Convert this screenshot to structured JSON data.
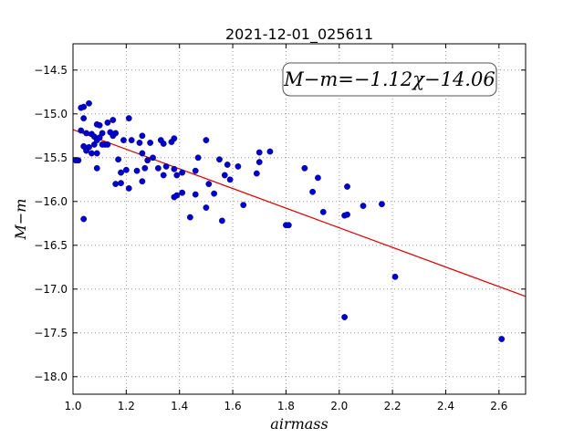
{
  "chart_data": {
    "type": "scatter",
    "title": "2021-12-01_025611",
    "xlabel": "airmass",
    "ylabel": "M−m",
    "xlim": [
      1.0,
      2.7
    ],
    "ylim": [
      -18.2,
      -14.2
    ],
    "y_inverted": true,
    "xticks": [
      "1.0",
      "1.2",
      "1.4",
      "1.6",
      "1.8",
      "2.0",
      "2.2",
      "2.4",
      "2.6"
    ],
    "xtick_values": [
      1.0,
      1.2,
      1.4,
      1.6,
      1.8,
      2.0,
      2.2,
      2.4,
      2.6
    ],
    "yticks": [
      "−14.5",
      "−15.0",
      "−15.5",
      "−16.0",
      "−16.5",
      "−17.0",
      "−17.5",
      "−18.0"
    ],
    "ytick_values": [
      -14.5,
      -15.0,
      -15.5,
      -16.0,
      -16.5,
      -17.0,
      -17.5,
      -18.0
    ],
    "grid": true,
    "annotation": "M−m=−1.12χ−14.06",
    "fit": {
      "slope": -1.12,
      "intercept": -14.06,
      "color": "#dd0000"
    },
    "point_color": "#0000cc",
    "series": [
      {
        "x": [
          1.04,
          1.03,
          1.04,
          1.06,
          1.09,
          1.1,
          1.13,
          1.15,
          1.03,
          1.05,
          1.07,
          1.08,
          1.11,
          1.14,
          1.16,
          1.02,
          1.04,
          1.05,
          1.06,
          1.08,
          1.09,
          1.1,
          1.12,
          1.13,
          1.15,
          1.17,
          1.01,
          1.05,
          1.07,
          1.09,
          1.11,
          1.19,
          1.21,
          1.22,
          1.25,
          1.26,
          1.29,
          1.33,
          1.38,
          1.26,
          1.28,
          1.3,
          1.34,
          1.37,
          1.47,
          1.5,
          1.55,
          1.62,
          1.7,
          1.74,
          1.18,
          1.2,
          1.24,
          1.27,
          1.32,
          1.35,
          1.38,
          1.41,
          1.46,
          1.51,
          1.58,
          1.7,
          1.09,
          1.16,
          1.18,
          1.21,
          1.26,
          1.34,
          1.39,
          1.57,
          1.59,
          1.69,
          1.87,
          1.92,
          1.39,
          1.41,
          1.38,
          1.46,
          1.5,
          1.53,
          1.64,
          1.9,
          2.03,
          1.04,
          1.44,
          1.56,
          1.8,
          1.81,
          1.94,
          2.02,
          2.03,
          2.09,
          2.16,
          2.21,
          2.02,
          2.61
        ],
        "y": [
          -14.92,
          -14.93,
          -15.05,
          -14.88,
          -15.12,
          -15.13,
          -15.1,
          -15.07,
          -15.19,
          -15.22,
          -15.23,
          -15.26,
          -15.22,
          -15.21,
          -15.22,
          -15.53,
          -15.37,
          -15.4,
          -15.38,
          -15.35,
          -15.3,
          -15.27,
          -15.35,
          -15.35,
          -15.25,
          -15.52,
          -15.53,
          -15.42,
          -15.45,
          -15.45,
          -15.35,
          -15.3,
          -15.05,
          -15.3,
          -15.33,
          -15.25,
          -15.33,
          -15.3,
          -15.28,
          -15.45,
          -15.53,
          -15.5,
          -15.34,
          -15.32,
          -15.5,
          -15.3,
          -15.52,
          -15.6,
          -15.44,
          -15.43,
          -15.67,
          -15.64,
          -15.65,
          -15.62,
          -15.62,
          -15.6,
          -15.63,
          -15.67,
          -15.65,
          -15.8,
          -15.58,
          -15.55,
          -15.62,
          -15.8,
          -15.79,
          -15.85,
          -15.77,
          -15.7,
          -15.7,
          -15.7,
          -15.75,
          -15.68,
          -15.62,
          -15.73,
          -15.93,
          -15.9,
          -15.95,
          -15.92,
          -16.07,
          -15.91,
          -16.04,
          -15.89,
          -15.83,
          -16.2,
          -16.18,
          -16.22,
          -16.27,
          -16.27,
          -16.12,
          -16.16,
          -16.15,
          -16.05,
          -16.03,
          -16.86,
          -17.32,
          -17.57
        ]
      }
    ]
  }
}
